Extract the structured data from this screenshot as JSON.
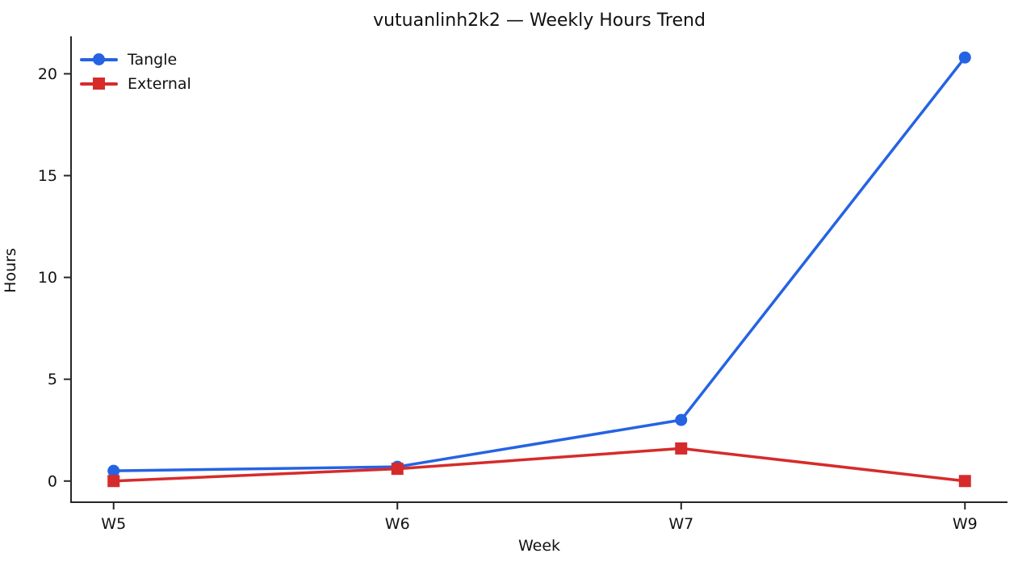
{
  "chart_data": {
    "type": "line",
    "title": "vutuanlinh2k2 — Weekly Hours Trend",
    "xlabel": "Week",
    "ylabel": "Hours",
    "categories": [
      "W5",
      "W6",
      "W7",
      "W9"
    ],
    "series": [
      {
        "name": "Tangle",
        "color": "#2563e3",
        "marker": "circle",
        "values": [
          0.5,
          0.7,
          3.0,
          20.8
        ]
      },
      {
        "name": "External",
        "color": "#d62b2b",
        "marker": "square",
        "values": [
          0.0,
          0.6,
          1.6,
          0.0
        ]
      }
    ],
    "yticks": [
      0,
      5,
      10,
      15,
      20
    ],
    "ylim": [
      -1.04,
      21.84
    ],
    "xlim": [
      -0.15,
      3.15
    ],
    "legend_position": "upper-left",
    "grid": false,
    "background": "#ffffff",
    "axis_color": "#262626",
    "text_color": "#111111"
  }
}
